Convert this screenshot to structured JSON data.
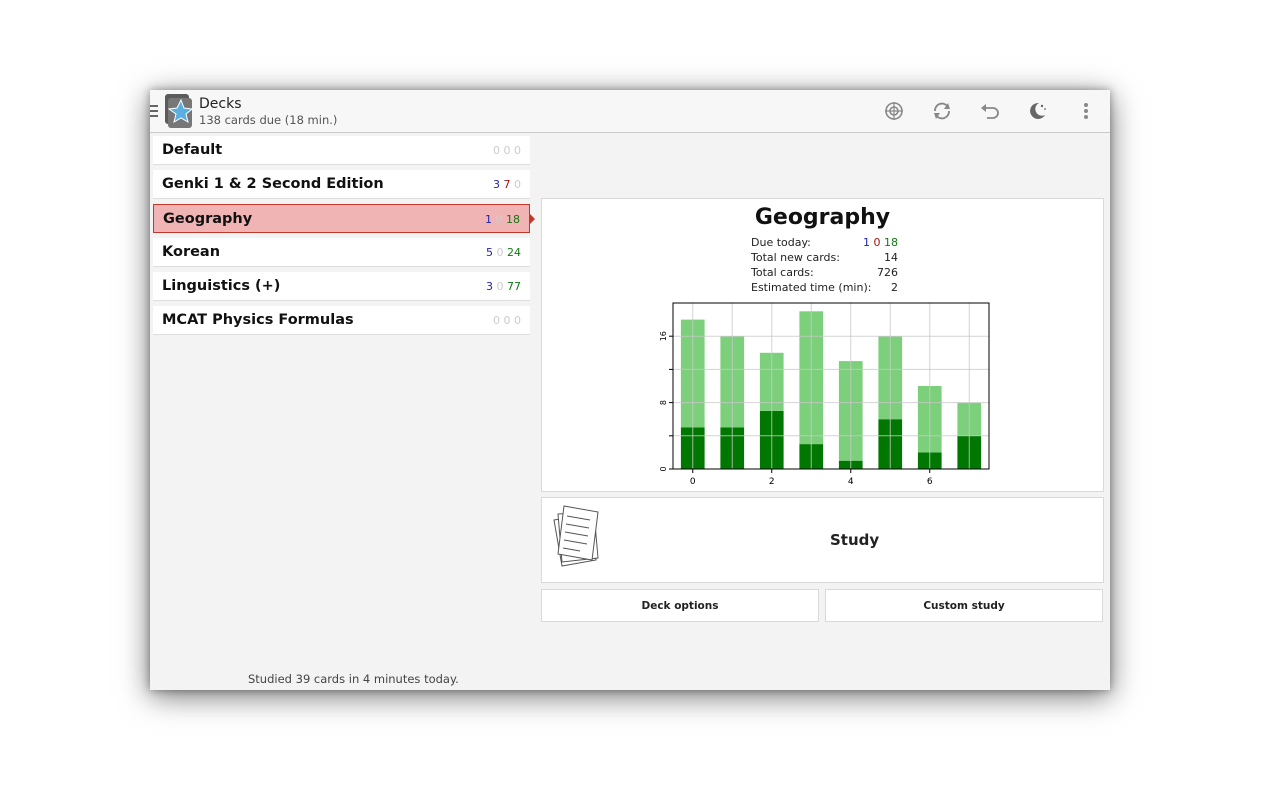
{
  "header": {
    "title": "Decks",
    "subtitle": "138 cards due (18 min.)",
    "icons": [
      "sync-icon",
      "refresh-icon",
      "undo-icon",
      "night-mode-icon",
      "overflow-menu-icon"
    ]
  },
  "decks": [
    {
      "name": "Default",
      "new": "0",
      "learn": "0",
      "review": "0",
      "new_zero": true,
      "learn_zero": true,
      "review_zero": true
    },
    {
      "name": "Genki 1 & 2 Second Edition",
      "new": "3",
      "learn": "7",
      "review": "0",
      "new_zero": false,
      "learn_zero": false,
      "review_zero": true
    },
    {
      "name": "Geography",
      "new": "1",
      "learn": "0",
      "review": "18",
      "new_zero": false,
      "learn_zero": true,
      "review_zero": false,
      "selected": true
    },
    {
      "name": "Korean",
      "new": "5",
      "learn": "0",
      "review": "24",
      "new_zero": false,
      "learn_zero": true,
      "review_zero": false
    },
    {
      "name": "Linguistics (+)",
      "new": "3",
      "learn": "0",
      "review": "77",
      "new_zero": false,
      "learn_zero": true,
      "review_zero": false
    },
    {
      "name": "MCAT Physics Formulas",
      "new": "0",
      "learn": "0",
      "review": "0",
      "new_zero": true,
      "learn_zero": true,
      "review_zero": true
    }
  ],
  "overview": {
    "title": "Geography",
    "due_label": "Due today:",
    "due_new": "1",
    "due_learn": "0",
    "due_review": "18",
    "total_new_label": "Total new cards:",
    "total_new": "14",
    "total_cards_label": "Total cards:",
    "total_cards": "726",
    "est_time_label": "Estimated time (min):",
    "est_time": "2"
  },
  "chart_data": {
    "type": "bar",
    "x": [
      0,
      1,
      2,
      3,
      4,
      5,
      6,
      7
    ],
    "series": [
      {
        "values": [
          5,
          5,
          7,
          3,
          1,
          6,
          2,
          4
        ],
        "color": "#007700"
      },
      {
        "values": [
          13,
          11,
          7,
          16,
          12,
          10,
          8,
          4
        ],
        "color": "#7cd07c"
      }
    ],
    "stacked": true,
    "xticks": [
      "0",
      "2",
      "4",
      "6"
    ],
    "yticks": [
      "0",
      "8",
      "16"
    ],
    "ylim": [
      0,
      20
    ],
    "xlim": [
      -0.5,
      7.5
    ],
    "grid": true
  },
  "study": {
    "label": "Study"
  },
  "buttons": {
    "deck_options": "Deck options",
    "custom_study": "Custom study"
  },
  "footer": "Studied 39 cards in 4 minutes today."
}
